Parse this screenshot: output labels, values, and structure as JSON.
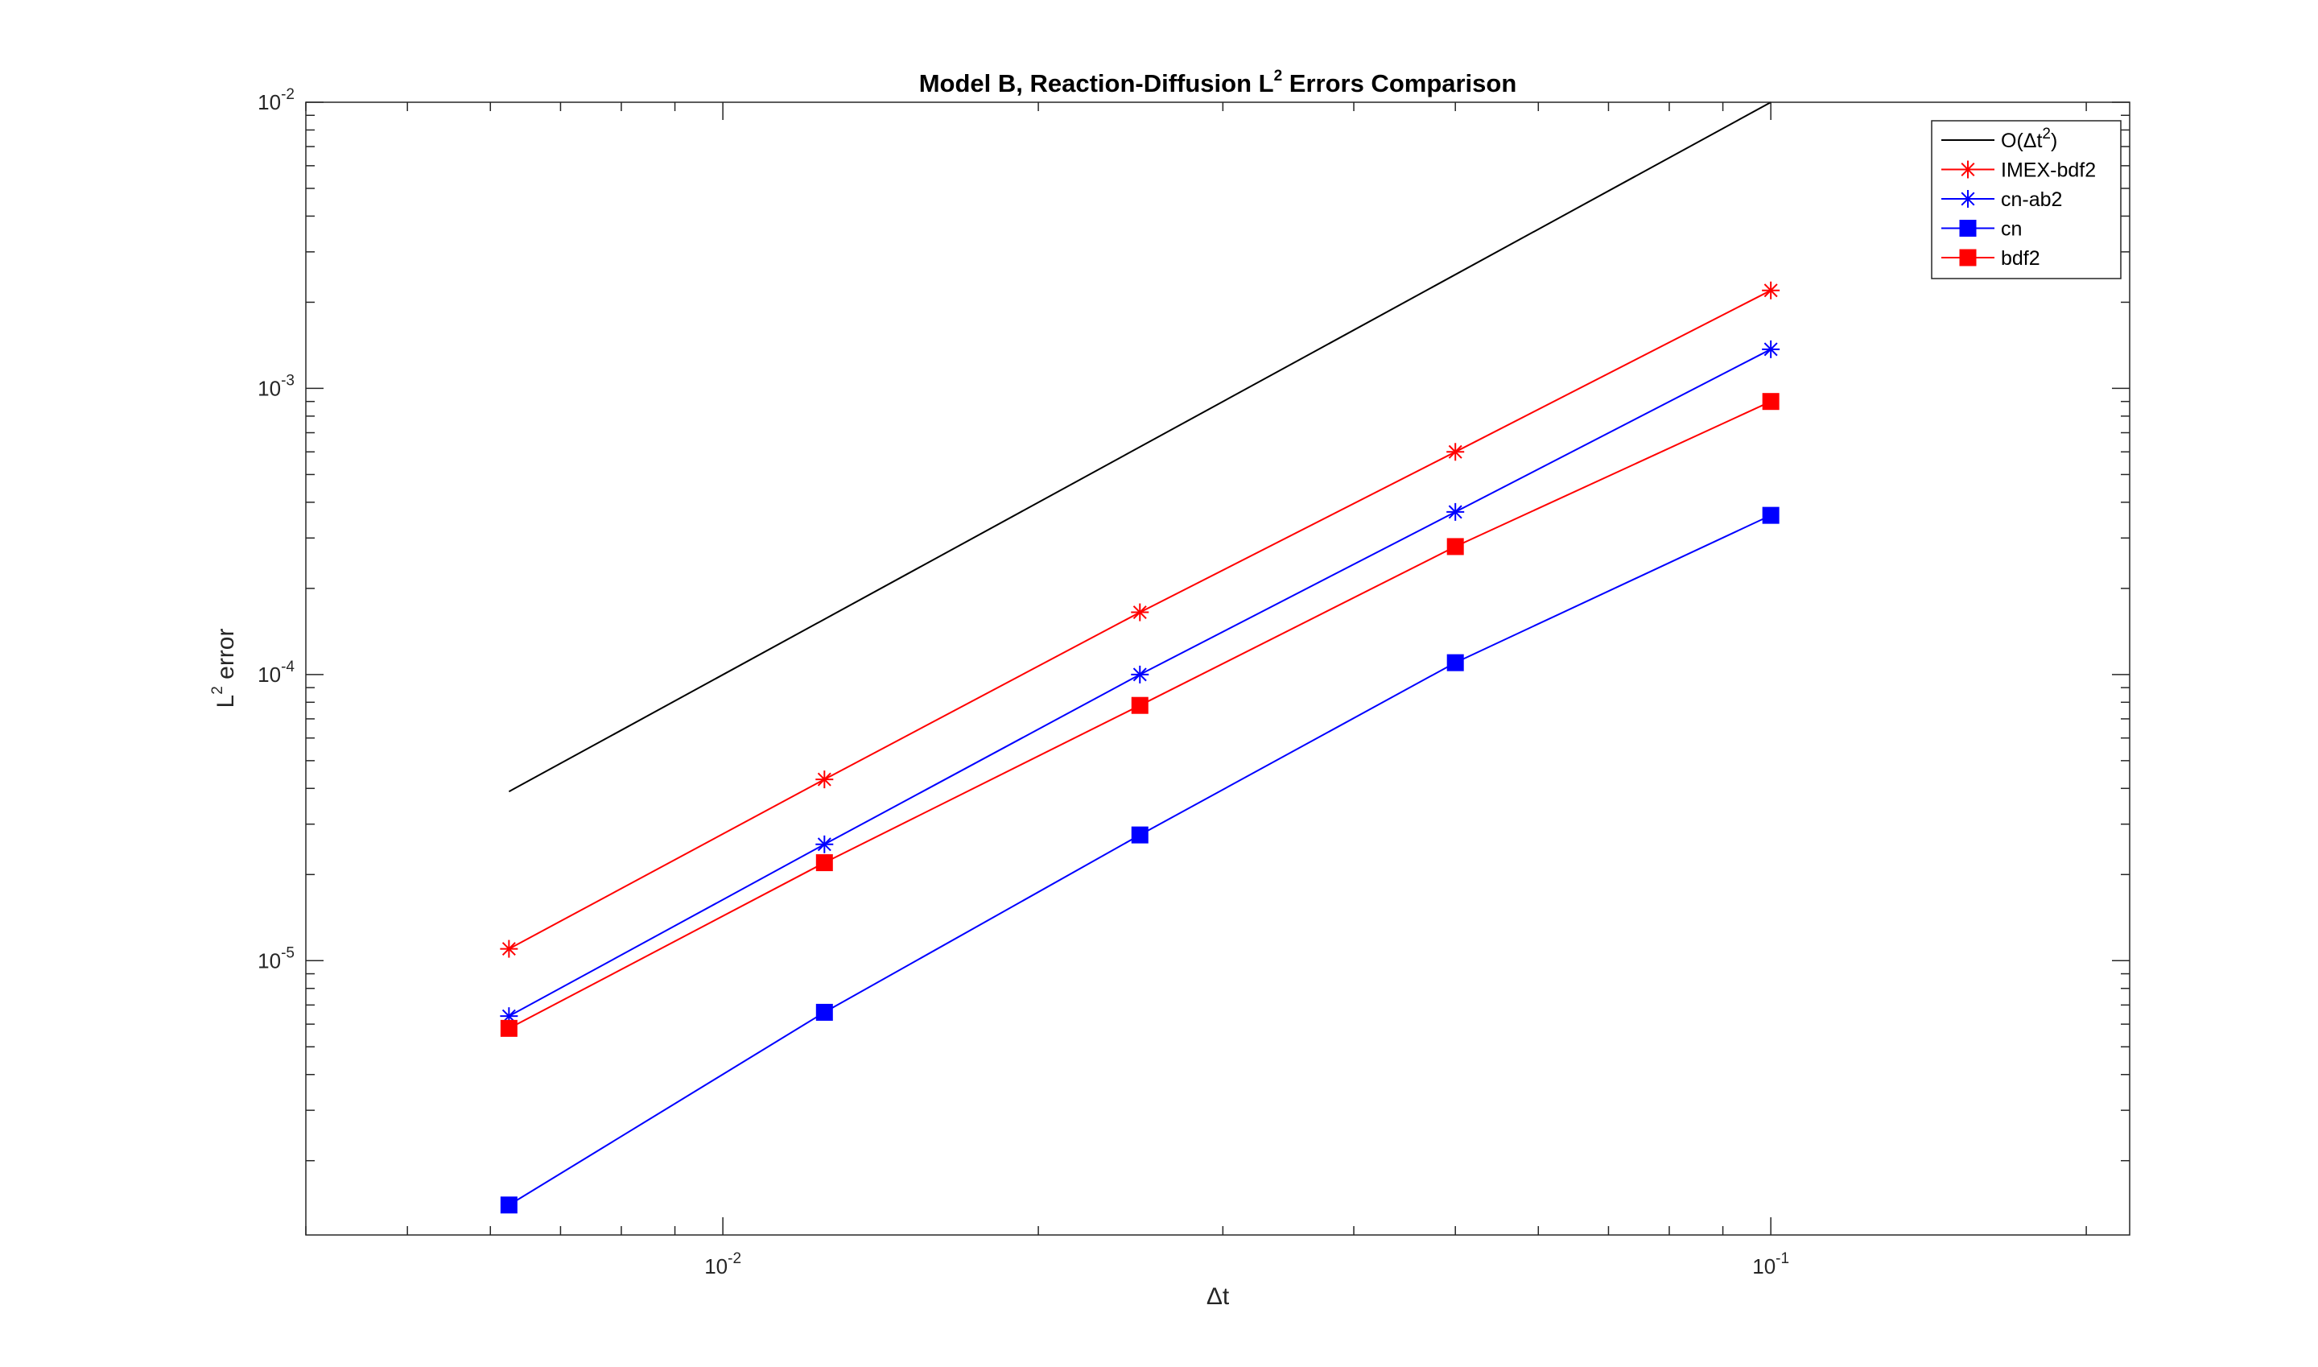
{
  "chart_data": {
    "type": "line",
    "title": "Model B, Reaction-Diffusion L^2 Errors Comparison",
    "title_parts": {
      "before": "Model B, Reaction-Diffusion L",
      "sup": "2",
      "after": " Errors Comparison"
    },
    "xlabel": "Δt",
    "ylabel_parts": {
      "before": "L",
      "sup": "2",
      "after": " error"
    },
    "xscale": "log",
    "yscale": "log",
    "xlim": [
      0.004,
      0.22
    ],
    "ylim": [
      1.1e-06,
      0.01
    ],
    "grid": false,
    "legend_placement": "top-right",
    "x_ticks": [
      {
        "value": 0.01,
        "base": "10",
        "exp": "-2"
      },
      {
        "value": 0.1,
        "base": "10",
        "exp": "-1"
      }
    ],
    "y_ticks": [
      {
        "value": 1e-05,
        "base": "10",
        "exp": "-5"
      },
      {
        "value": 0.0001,
        "base": "10",
        "exp": "-4"
      },
      {
        "value": 0.001,
        "base": "10",
        "exp": "-3"
      },
      {
        "value": 0.01,
        "base": "10",
        "exp": "-2"
      }
    ],
    "series": [
      {
        "key": "ref",
        "name": "O(Δt^2)",
        "name_parts": {
          "before": "O(Δt",
          "sup": "2",
          "after": ")"
        },
        "color": "#000000",
        "marker": "none",
        "x": [
          0.00625,
          0.1
        ],
        "y": [
          3.9e-05,
          0.01
        ]
      },
      {
        "key": "imex-bdf2",
        "name": "IMEX-bdf2",
        "color": "#ff0000",
        "marker": "asterisk",
        "x": [
          0.00625,
          0.0125,
          0.025,
          0.05,
          0.1
        ],
        "y": [
          1.1e-05,
          4.3e-05,
          0.000165,
          0.0006,
          0.0022
        ]
      },
      {
        "key": "cn-ab2",
        "name": "cn-ab2",
        "color": "#0000ff",
        "marker": "asterisk",
        "x": [
          0.00625,
          0.0125,
          0.025,
          0.05,
          0.1
        ],
        "y": [
          6.4e-06,
          2.55e-05,
          0.0001,
          0.00037,
          0.00137
        ]
      },
      {
        "key": "cn",
        "name": "cn",
        "color": "#0000ff",
        "marker": "square",
        "x": [
          0.00625,
          0.0125,
          0.025,
          0.05,
          0.1
        ],
        "y": [
          1.4e-06,
          6.6e-06,
          2.75e-05,
          0.00011,
          0.00036
        ]
      },
      {
        "key": "bdf2",
        "name": "bdf2",
        "color": "#ff0000",
        "marker": "square",
        "x": [
          0.00625,
          0.0125,
          0.025,
          0.05,
          0.1
        ],
        "y": [
          5.8e-06,
          2.2e-05,
          7.8e-05,
          0.00028,
          0.0009
        ]
      }
    ]
  }
}
